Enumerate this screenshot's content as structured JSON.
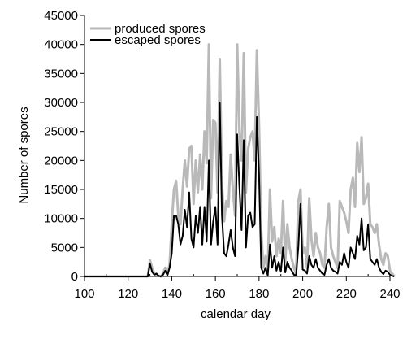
{
  "chart_data": {
    "type": "line",
    "title": "",
    "xlabel": "calendar day",
    "ylabel": "Number of spores",
    "xlim": [
      100,
      240
    ],
    "ylim": [
      0,
      45000
    ],
    "x_ticks": [
      "100",
      "120",
      "140",
      "160",
      "180",
      "200",
      "220",
      "240"
    ],
    "y_ticks": [
      "0",
      "5000",
      "10000",
      "15000",
      "20000",
      "25000",
      "30000",
      "35000",
      "40000",
      "45000"
    ],
    "grid": false,
    "legend": "top-left",
    "series": [
      {
        "name": "produced spores",
        "color": "#b9b9b9",
        "points": [
          [
            100,
            0
          ],
          [
            129,
            0
          ],
          [
            130,
            2800
          ],
          [
            131,
            1500
          ],
          [
            132,
            500
          ],
          [
            133,
            300
          ],
          [
            134,
            100
          ],
          [
            135,
            0
          ],
          [
            136,
            500
          ],
          [
            137,
            1500
          ],
          [
            138,
            300
          ],
          [
            139,
            2000
          ],
          [
            140,
            9000
          ],
          [
            141,
            15000
          ],
          [
            142,
            16500
          ],
          [
            143,
            10500
          ],
          [
            144,
            9000
          ],
          [
            145,
            15000
          ],
          [
            146,
            20000
          ],
          [
            147,
            15500
          ],
          [
            148,
            22000
          ],
          [
            149,
            22500
          ],
          [
            150,
            12500
          ],
          [
            151,
            20000
          ],
          [
            152,
            14500
          ],
          [
            153,
            21000
          ],
          [
            154,
            15000
          ],
          [
            155,
            25000
          ],
          [
            156,
            19500
          ],
          [
            157,
            40000
          ],
          [
            158,
            13500
          ],
          [
            159,
            27000
          ],
          [
            160,
            26500
          ],
          [
            161,
            14500
          ],
          [
            162,
            37500
          ],
          [
            163,
            16000
          ],
          [
            164,
            9500
          ],
          [
            165,
            13000
          ],
          [
            166,
            12000
          ],
          [
            167,
            21000
          ],
          [
            168,
            15000
          ],
          [
            169,
            10500
          ],
          [
            170,
            40000
          ],
          [
            171,
            25000
          ],
          [
            172,
            20000
          ],
          [
            173,
            38500
          ],
          [
            174,
            14500
          ],
          [
            175,
            22000
          ],
          [
            176,
            24000
          ],
          [
            177,
            25000
          ],
          [
            178,
            20000
          ],
          [
            179,
            39000
          ],
          [
            180,
            26000
          ],
          [
            181,
            8000
          ],
          [
            182,
            1500
          ],
          [
            183,
            3500
          ],
          [
            184,
            1000
          ],
          [
            185,
            15000
          ],
          [
            186,
            6000
          ],
          [
            187,
            8500
          ],
          [
            188,
            3500
          ],
          [
            189,
            6500
          ],
          [
            190,
            4000
          ],
          [
            191,
            13000
          ],
          [
            192,
            2500
          ],
          [
            193,
            9000
          ],
          [
            194,
            5000
          ],
          [
            195,
            3000
          ],
          [
            196,
            1500
          ],
          [
            197,
            500
          ],
          [
            198,
            13000
          ],
          [
            199,
            15000
          ],
          [
            200,
            4000
          ],
          [
            201,
            5000
          ],
          [
            202,
            1500
          ],
          [
            203,
            13500
          ],
          [
            204,
            6500
          ],
          [
            205,
            3500
          ],
          [
            206,
            7500
          ],
          [
            207,
            5000
          ],
          [
            208,
            4000
          ],
          [
            209,
            2000
          ],
          [
            210,
            1500
          ],
          [
            211,
            8500
          ],
          [
            212,
            12500
          ],
          [
            213,
            5000
          ],
          [
            214,
            3500
          ],
          [
            215,
            2500
          ],
          [
            216,
            1500
          ],
          [
            217,
            13000
          ],
          [
            218,
            12000
          ],
          [
            219,
            11000
          ],
          [
            220,
            9500
          ],
          [
            221,
            7500
          ],
          [
            222,
            15000
          ],
          [
            223,
            17000
          ],
          [
            224,
            12000
          ],
          [
            225,
            23000
          ],
          [
            226,
            18000
          ],
          [
            227,
            24000
          ],
          [
            228,
            12500
          ],
          [
            229,
            13500
          ],
          [
            230,
            16000
          ],
          [
            231,
            9000
          ],
          [
            232,
            8500
          ],
          [
            233,
            7500
          ],
          [
            234,
            9000
          ],
          [
            235,
            5500
          ],
          [
            236,
            3000
          ],
          [
            237,
            2000
          ],
          [
            238,
            4000
          ],
          [
            239,
            3500
          ],
          [
            240,
            1000
          ],
          [
            241,
            500
          ],
          [
            242,
            0
          ]
        ]
      },
      {
        "name": "escaped spores",
        "color": "#000000",
        "points": [
          [
            100,
            0
          ],
          [
            129,
            0
          ],
          [
            130,
            2200
          ],
          [
            131,
            800
          ],
          [
            132,
            300
          ],
          [
            133,
            500
          ],
          [
            134,
            100
          ],
          [
            135,
            0
          ],
          [
            136,
            300
          ],
          [
            137,
            1000
          ],
          [
            138,
            200
          ],
          [
            139,
            1500
          ],
          [
            140,
            4000
          ],
          [
            141,
            10500
          ],
          [
            142,
            10500
          ],
          [
            143,
            9000
          ],
          [
            144,
            5500
          ],
          [
            145,
            7000
          ],
          [
            146,
            11500
          ],
          [
            147,
            8500
          ],
          [
            148,
            14500
          ],
          [
            149,
            6500
          ],
          [
            150,
            5000
          ],
          [
            151,
            10500
          ],
          [
            152,
            7500
          ],
          [
            153,
            12000
          ],
          [
            154,
            5500
          ],
          [
            155,
            12000
          ],
          [
            156,
            6000
          ],
          [
            157,
            20000
          ],
          [
            158,
            5500
          ],
          [
            159,
            9500
          ],
          [
            160,
            12000
          ],
          [
            161,
            5500
          ],
          [
            162,
            30000
          ],
          [
            163,
            10500
          ],
          [
            164,
            4000
          ],
          [
            165,
            3500
          ],
          [
            166,
            5500
          ],
          [
            167,
            8000
          ],
          [
            168,
            5000
          ],
          [
            169,
            3500
          ],
          [
            170,
            24500
          ],
          [
            171,
            15500
          ],
          [
            172,
            8000
          ],
          [
            173,
            23500
          ],
          [
            174,
            5000
          ],
          [
            175,
            10500
          ],
          [
            176,
            11000
          ],
          [
            177,
            8500
          ],
          [
            178,
            9000
          ],
          [
            179,
            27500
          ],
          [
            180,
            17500
          ],
          [
            181,
            1500
          ],
          [
            182,
            500
          ],
          [
            183,
            1500
          ],
          [
            184,
            200
          ],
          [
            185,
            5500
          ],
          [
            186,
            1500
          ],
          [
            187,
            3500
          ],
          [
            188,
            1000
          ],
          [
            189,
            2500
          ],
          [
            190,
            800
          ],
          [
            191,
            5000
          ],
          [
            192,
            700
          ],
          [
            193,
            2500
          ],
          [
            194,
            1500
          ],
          [
            195,
            1000
          ],
          [
            196,
            300
          ],
          [
            197,
            200
          ],
          [
            198,
            5000
          ],
          [
            199,
            12500
          ],
          [
            200,
            1200
          ],
          [
            201,
            1000
          ],
          [
            202,
            500
          ],
          [
            203,
            3500
          ],
          [
            204,
            2000
          ],
          [
            205,
            1500
          ],
          [
            206,
            3000
          ],
          [
            207,
            1500
          ],
          [
            208,
            1000
          ],
          [
            209,
            500
          ],
          [
            210,
            300
          ],
          [
            211,
            2000
          ],
          [
            212,
            3000
          ],
          [
            213,
            1500
          ],
          [
            214,
            1000
          ],
          [
            215,
            800
          ],
          [
            216,
            500
          ],
          [
            217,
            2500
          ],
          [
            218,
            2000
          ],
          [
            219,
            4000
          ],
          [
            220,
            2500
          ],
          [
            221,
            1500
          ],
          [
            222,
            5000
          ],
          [
            223,
            4000
          ],
          [
            224,
            3000
          ],
          [
            225,
            7000
          ],
          [
            226,
            5500
          ],
          [
            227,
            10000
          ],
          [
            228,
            4500
          ],
          [
            229,
            5000
          ],
          [
            230,
            9000
          ],
          [
            231,
            3000
          ],
          [
            232,
            2500
          ],
          [
            233,
            2000
          ],
          [
            234,
            3000
          ],
          [
            235,
            1500
          ],
          [
            236,
            800
          ],
          [
            237,
            400
          ],
          [
            238,
            1000
          ],
          [
            239,
            800
          ],
          [
            240,
            300
          ],
          [
            241,
            100
          ],
          [
            242,
            0
          ]
        ]
      }
    ]
  }
}
